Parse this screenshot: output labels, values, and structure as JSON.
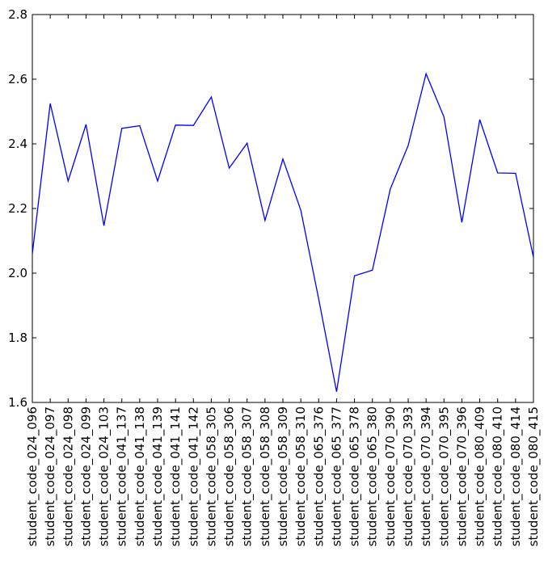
{
  "chart_data": {
    "type": "line",
    "title": "",
    "xlabel": "",
    "ylabel": "",
    "ylim": [
      1.6,
      2.8
    ],
    "yticks": [
      "1.6",
      "1.8",
      "2.0",
      "2.2",
      "2.4",
      "2.6",
      "2.8"
    ],
    "grid": false,
    "categories": [
      "student_code_024_096",
      "student_code_024_097",
      "student_code_024_098",
      "student_code_024_099",
      "student_code_024_103",
      "student_code_041_137",
      "student_code_041_138",
      "student_code_041_139",
      "student_code_041_141",
      "student_code_041_142",
      "student_code_058_305",
      "student_code_058_306",
      "student_code_058_307",
      "student_code_058_308",
      "student_code_058_309",
      "student_code_058_310",
      "student_code_065_376",
      "student_code_065_377",
      "student_code_065_378",
      "student_code_065_380",
      "student_code_070_390",
      "student_code_070_393",
      "student_code_070_394",
      "student_code_070_395",
      "student_code_070_396",
      "student_code_080_409",
      "student_code_080_410",
      "student_code_080_414",
      "student_code_080_415"
    ],
    "series": [
      {
        "color": "#0000ff",
        "values": [
          2.06,
          2.525,
          2.285,
          2.46,
          2.147,
          2.448,
          2.456,
          2.285,
          2.458,
          2.457,
          2.545,
          2.325,
          2.402,
          2.163,
          2.353,
          2.195,
          1.92,
          1.633,
          1.992,
          2.009,
          2.26,
          2.395,
          2.617,
          2.483,
          2.157,
          2.475,
          2.31,
          2.309,
          2.049
        ]
      }
    ]
  }
}
